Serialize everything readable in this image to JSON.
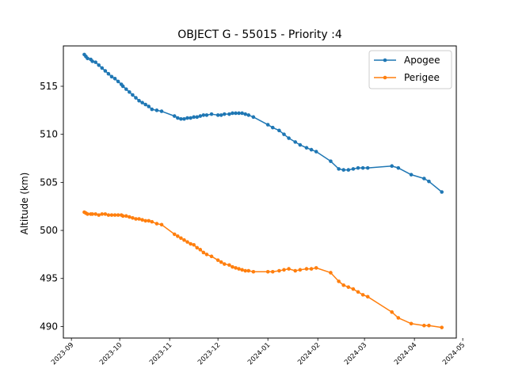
{
  "chart_data": {
    "type": "line",
    "title": "OBJECT G - 55015 - Priority :4",
    "xlabel": "",
    "ylabel": "Altitude (km)",
    "x_type": "date",
    "xlim": [
      "2023-08-27",
      "2024-04-27"
    ],
    "ylim": [
      488.8,
      519.2
    ],
    "yticks": [
      490,
      495,
      500,
      505,
      510,
      515
    ],
    "xticks": [
      {
        "date": "2023-09-01",
        "label": "2023-09"
      },
      {
        "date": "2023-10-01",
        "label": "2023-10"
      },
      {
        "date": "2023-11-01",
        "label": "2023-11"
      },
      {
        "date": "2023-12-01",
        "label": "2023-12"
      },
      {
        "date": "2024-01-01",
        "label": "2024-01"
      },
      {
        "date": "2024-02-01",
        "label": "2024-02"
      },
      {
        "date": "2024-03-01",
        "label": "2024-03"
      },
      {
        "date": "2024-04-01",
        "label": "2024-04"
      },
      {
        "date": "2024-05-01",
        "label": "2024-05"
      }
    ],
    "legend_position": "top-right",
    "grid": false,
    "series": [
      {
        "name": "Apogee",
        "color": "#1f77b4",
        "marker": "circle",
        "points": [
          [
            "2023-09-09",
            518.3
          ],
          [
            "2023-09-10",
            518.1
          ],
          [
            "2023-09-11",
            517.9
          ],
          [
            "2023-09-13",
            517.8
          ],
          [
            "2023-09-14",
            517.6
          ],
          [
            "2023-09-16",
            517.5
          ],
          [
            "2023-09-18",
            517.2
          ],
          [
            "2023-09-20",
            516.9
          ],
          [
            "2023-09-22",
            516.6
          ],
          [
            "2023-09-24",
            516.3
          ],
          [
            "2023-09-26",
            516.0
          ],
          [
            "2023-09-28",
            515.8
          ],
          [
            "2023-09-30",
            515.5
          ],
          [
            "2023-10-02",
            515.2
          ],
          [
            "2023-10-03",
            515.0
          ],
          [
            "2023-10-05",
            514.7
          ],
          [
            "2023-10-07",
            514.4
          ],
          [
            "2023-10-09",
            514.1
          ],
          [
            "2023-10-11",
            513.8
          ],
          [
            "2023-10-13",
            513.5
          ],
          [
            "2023-10-15",
            513.3
          ],
          [
            "2023-10-17",
            513.1
          ],
          [
            "2023-10-19",
            512.9
          ],
          [
            "2023-10-21",
            512.6
          ],
          [
            "2023-10-24",
            512.5
          ],
          [
            "2023-10-27",
            512.4
          ],
          [
            "2023-11-04",
            511.9
          ],
          [
            "2023-11-06",
            511.7
          ],
          [
            "2023-11-08",
            511.6
          ],
          [
            "2023-11-10",
            511.6
          ],
          [
            "2023-11-12",
            511.7
          ],
          [
            "2023-11-14",
            511.7
          ],
          [
            "2023-11-16",
            511.8
          ],
          [
            "2023-11-18",
            511.8
          ],
          [
            "2023-11-20",
            511.9
          ],
          [
            "2023-11-22",
            512.0
          ],
          [
            "2023-11-24",
            512.0
          ],
          [
            "2023-11-27",
            512.1
          ],
          [
            "2023-12-01",
            512.0
          ],
          [
            "2023-12-03",
            512.0
          ],
          [
            "2023-12-05",
            512.1
          ],
          [
            "2023-12-08",
            512.1
          ],
          [
            "2023-12-10",
            512.2
          ],
          [
            "2023-12-12",
            512.2
          ],
          [
            "2023-12-14",
            512.2
          ],
          [
            "2023-12-16",
            512.2
          ],
          [
            "2023-12-18",
            512.1
          ],
          [
            "2023-12-20",
            512.0
          ],
          [
            "2023-12-23",
            511.8
          ],
          [
            "2024-01-01",
            511.0
          ],
          [
            "2024-01-04",
            510.7
          ],
          [
            "2024-01-08",
            510.4
          ],
          [
            "2024-01-11",
            510.0
          ],
          [
            "2024-01-14",
            509.6
          ],
          [
            "2024-01-18",
            509.2
          ],
          [
            "2024-01-21",
            508.9
          ],
          [
            "2024-01-25",
            508.6
          ],
          [
            "2024-01-28",
            508.4
          ],
          [
            "2024-01-31",
            508.2
          ],
          [
            "2024-02-09",
            507.2
          ],
          [
            "2024-02-14",
            506.4
          ],
          [
            "2024-02-17",
            506.3
          ],
          [
            "2024-02-20",
            506.3
          ],
          [
            "2024-02-23",
            506.4
          ],
          [
            "2024-02-26",
            506.5
          ],
          [
            "2024-02-29",
            506.5
          ],
          [
            "2024-03-03",
            506.5
          ],
          [
            "2024-03-18",
            506.7
          ],
          [
            "2024-03-22",
            506.5
          ],
          [
            "2024-03-30",
            505.8
          ],
          [
            "2024-04-07",
            505.4
          ],
          [
            "2024-04-10",
            505.1
          ],
          [
            "2024-04-18",
            504.0
          ]
        ]
      },
      {
        "name": "Perigee",
        "color": "#ff7f0e",
        "marker": "circle",
        "points": [
          [
            "2023-09-09",
            501.9
          ],
          [
            "2023-09-10",
            501.8
          ],
          [
            "2023-09-11",
            501.7
          ],
          [
            "2023-09-13",
            501.7
          ],
          [
            "2023-09-14",
            501.7
          ],
          [
            "2023-09-16",
            501.7
          ],
          [
            "2023-09-18",
            501.6
          ],
          [
            "2023-09-20",
            501.7
          ],
          [
            "2023-09-22",
            501.7
          ],
          [
            "2023-09-24",
            501.6
          ],
          [
            "2023-09-26",
            501.6
          ],
          [
            "2023-09-28",
            501.6
          ],
          [
            "2023-09-30",
            501.6
          ],
          [
            "2023-10-02",
            501.6
          ],
          [
            "2023-10-03",
            501.5
          ],
          [
            "2023-10-05",
            501.5
          ],
          [
            "2023-10-07",
            501.4
          ],
          [
            "2023-10-09",
            501.3
          ],
          [
            "2023-10-11",
            501.2
          ],
          [
            "2023-10-13",
            501.2
          ],
          [
            "2023-10-15",
            501.1
          ],
          [
            "2023-10-17",
            501.0
          ],
          [
            "2023-10-19",
            501.0
          ],
          [
            "2023-10-21",
            500.9
          ],
          [
            "2023-10-24",
            500.7
          ],
          [
            "2023-10-27",
            500.6
          ],
          [
            "2023-11-04",
            499.6
          ],
          [
            "2023-11-06",
            499.4
          ],
          [
            "2023-11-08",
            499.2
          ],
          [
            "2023-11-10",
            499.0
          ],
          [
            "2023-11-12",
            498.8
          ],
          [
            "2023-11-14",
            498.6
          ],
          [
            "2023-11-16",
            498.5
          ],
          [
            "2023-11-18",
            498.2
          ],
          [
            "2023-11-20",
            498.0
          ],
          [
            "2023-11-22",
            497.7
          ],
          [
            "2023-11-24",
            497.5
          ],
          [
            "2023-11-27",
            497.3
          ],
          [
            "2023-12-01",
            496.9
          ],
          [
            "2023-12-03",
            496.7
          ],
          [
            "2023-12-05",
            496.5
          ],
          [
            "2023-12-08",
            496.4
          ],
          [
            "2023-12-10",
            496.2
          ],
          [
            "2023-12-12",
            496.1
          ],
          [
            "2023-12-14",
            496.0
          ],
          [
            "2023-12-16",
            495.9
          ],
          [
            "2023-12-18",
            495.8
          ],
          [
            "2023-12-20",
            495.8
          ],
          [
            "2023-12-23",
            495.7
          ],
          [
            "2024-01-01",
            495.7
          ],
          [
            "2024-01-04",
            495.7
          ],
          [
            "2024-01-08",
            495.8
          ],
          [
            "2024-01-11",
            495.9
          ],
          [
            "2024-01-14",
            496.0
          ],
          [
            "2024-01-18",
            495.8
          ],
          [
            "2024-01-21",
            495.9
          ],
          [
            "2024-01-25",
            496.0
          ],
          [
            "2024-01-28",
            496.0
          ],
          [
            "2024-01-31",
            496.1
          ],
          [
            "2024-02-09",
            495.6
          ],
          [
            "2024-02-14",
            494.7
          ],
          [
            "2024-02-17",
            494.3
          ],
          [
            "2024-02-20",
            494.1
          ],
          [
            "2024-02-23",
            493.9
          ],
          [
            "2024-02-26",
            493.6
          ],
          [
            "2024-02-29",
            493.3
          ],
          [
            "2024-03-03",
            493.1
          ],
          [
            "2024-03-18",
            491.5
          ],
          [
            "2024-03-22",
            490.9
          ],
          [
            "2024-03-30",
            490.3
          ],
          [
            "2024-04-07",
            490.1
          ],
          [
            "2024-04-10",
            490.1
          ],
          [
            "2024-04-18",
            489.9
          ]
        ]
      }
    ]
  }
}
